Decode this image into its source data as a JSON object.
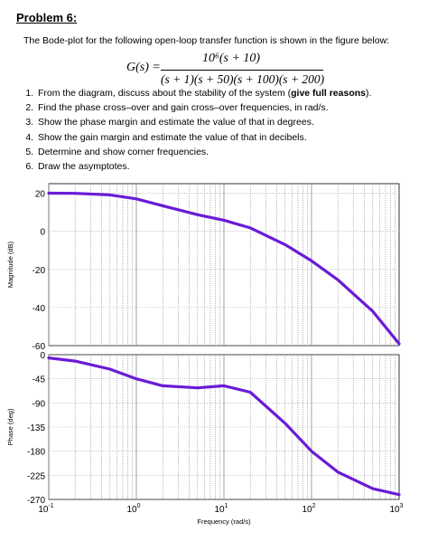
{
  "problem_title": "Problem 6:",
  "intro": "The Bode-plot for the following open-loop transfer function is shown in the figure below:",
  "transfer_function": {
    "lhs": "G(s) =",
    "numerator": "10⁶(s + 10)",
    "denominator": "(s + 1)(s + 50)(s + 100)(s + 200)"
  },
  "questions": [
    {
      "text": "From the diagram, discuss about the stability of the system (",
      "bold": "give full reasons",
      "tail": ")."
    },
    {
      "text": "Find the phase cross–over and gain cross–over frequencies, in rad/s.",
      "bold": "",
      "tail": ""
    },
    {
      "text": "Show the phase margin and estimate the value of that in degrees.",
      "bold": "",
      "tail": ""
    },
    {
      "text": "Show the gain margin and estimate the value of that in decibels.",
      "bold": "",
      "tail": ""
    },
    {
      "text": "Determine and show corner frequencies.",
      "bold": "",
      "tail": ""
    },
    {
      "text": "Draw the asymptotes.",
      "bold": "",
      "tail": ""
    }
  ],
  "chart_data": [
    {
      "type": "line",
      "ylabel": "Magnitude (dB)",
      "xscale": "log",
      "xlim": [
        0.1,
        1000
      ],
      "ylim": [
        -60,
        25
      ],
      "yticks": [
        "20",
        "0",
        "-20",
        "-40",
        "-60"
      ],
      "grid": true,
      "line_color": "#6a1bd6",
      "series": [
        {
          "x": [
            0.1,
            0.2,
            0.5,
            1,
            2,
            5,
            10,
            20,
            50,
            100,
            200,
            500,
            1000
          ],
          "y": [
            20,
            19.9,
            19.1,
            17,
            13.4,
            8.7,
            5.8,
            1.8,
            -7,
            -15.5,
            -25.5,
            -42,
            -59
          ]
        }
      ]
    },
    {
      "type": "line",
      "xlabel": "Frequency  (rad/s)",
      "ylabel": "Phase (deg)",
      "xscale": "log",
      "xlim": [
        0.1,
        1000
      ],
      "ylim": [
        -270,
        0
      ],
      "yticks": [
        "0",
        "-45",
        "-90",
        "-135",
        "-180",
        "-225",
        "-270"
      ],
      "xticks": [
        {
          "value": 0.1,
          "base": "10",
          "exp": "-1"
        },
        {
          "value": 1,
          "base": "10",
          "exp": "0"
        },
        {
          "value": 10,
          "base": "10",
          "exp": "1"
        },
        {
          "value": 100,
          "base": "10",
          "exp": "2"
        },
        {
          "value": 1000,
          "base": "10",
          "exp": "3"
        }
      ],
      "grid": true,
      "line_color": "#6a1bd6",
      "series": [
        {
          "x": [
            0.1,
            0.2,
            0.5,
            1,
            2,
            5,
            10,
            20,
            50,
            100,
            200,
            500,
            1000
          ],
          "y": [
            -6,
            -12,
            -27,
            -45,
            -58,
            -62,
            -58,
            -70,
            -128,
            -180,
            -219,
            -250,
            -261
          ]
        }
      ]
    }
  ]
}
